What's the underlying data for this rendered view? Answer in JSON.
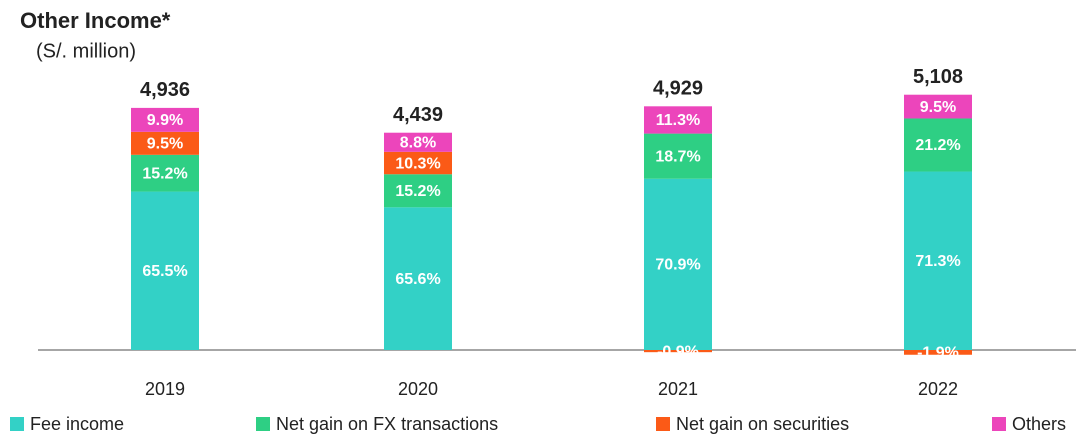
{
  "chart_data": {
    "type": "bar",
    "stacked": true,
    "title": "Other Income*",
    "subtitle": "(S/. million)",
    "categories": [
      "2019",
      "2020",
      "2021",
      "2022"
    ],
    "totals": {
      "values": [
        4936,
        4439,
        4929,
        5108
      ],
      "value_labels": [
        "4,936",
        "4,439",
        "4,929",
        "5,108"
      ]
    },
    "series": [
      {
        "name": "Fee income",
        "color": "#33d1c6",
        "values": [
          65.5,
          65.6,
          70.9,
          71.3
        ],
        "value_labels": [
          "65.5%",
          "65.6%",
          "70.9%",
          "71.3%"
        ]
      },
      {
        "name": "Net gain on FX transactions",
        "color": "#2ecf84",
        "values": [
          15.2,
          15.2,
          18.7,
          21.2
        ],
        "value_labels": [
          "15.2%",
          "15.2%",
          "18.7%",
          "21.2%"
        ]
      },
      {
        "name": "Net gain on securities",
        "color": "#fb5a17",
        "values": [
          9.5,
          10.3,
          -0.9,
          -1.9
        ],
        "value_labels": [
          "9.5%",
          "10.3%",
          "-0.9%",
          "-1.9%"
        ]
      },
      {
        "name": "Others",
        "color": "#ec45bb",
        "values": [
          9.9,
          8.8,
          11.3,
          9.5
        ],
        "value_labels": [
          "9.9%",
          "8.8%",
          "11.3%",
          "9.5%"
        ]
      }
    ]
  }
}
